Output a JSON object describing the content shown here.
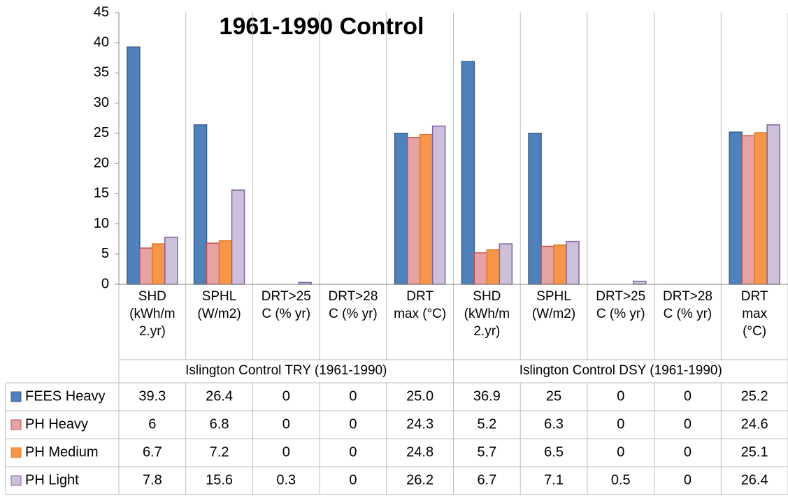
{
  "chart_data": {
    "type": "bar",
    "title": "1961-1990 Control",
    "categories": [
      "SHD\n(kWh/m\n2.yr)",
      "SPHL\n(W/m2)",
      "DRT>25\nC (% yr)",
      "DRT>28\nC (% yr)",
      "DRT\nmax (°C)",
      "SHD\n(kWh/m\n2.yr)",
      "SPHL\n(W/m2)",
      "DRT>25\nC (% yr)",
      "DRT>28\nC  (% yr)",
      "DRT\nmax\n(°C)"
    ],
    "groups": [
      "Islington Control TRY (1961-1990)",
      "Islington Control DSY (1961-1990)"
    ],
    "series": [
      {
        "name": "FEES Heavy",
        "color": "#4f81bd",
        "values": [
          39.3,
          26.4,
          0,
          0,
          25.0,
          36.9,
          25,
          0,
          0,
          25.2
        ],
        "value_labels": [
          "39.3",
          "26.4",
          "0",
          "0",
          "25.0",
          "36.9",
          "25",
          "0",
          "0",
          "25.2"
        ]
      },
      {
        "name": "PH Heavy",
        "color": "#e6a3a3",
        "values": [
          6,
          6.8,
          0,
          0,
          24.3,
          5.2,
          6.3,
          0,
          0,
          24.6
        ],
        "value_labels": [
          "6",
          "6.8",
          "0",
          "0",
          "24.3",
          "5.2",
          "6.3",
          "0",
          "0",
          "24.6"
        ]
      },
      {
        "name": "PH Medium",
        "color": "#f79646",
        "values": [
          6.7,
          7.2,
          0,
          0,
          24.8,
          5.7,
          6.5,
          0,
          0,
          25.1
        ],
        "value_labels": [
          "6.7",
          "7.2",
          "0",
          "0",
          "24.8",
          "5.7",
          "6.5",
          "0",
          "0",
          "25.1"
        ]
      },
      {
        "name": "PH Light",
        "color": "#ccc0da",
        "values": [
          7.8,
          15.6,
          0.3,
          0,
          26.2,
          6.7,
          7.1,
          0.5,
          0,
          26.4
        ],
        "value_labels": [
          "7.8",
          "15.6",
          "0.3",
          "0",
          "26.2",
          "6.7",
          "7.1",
          "0.5",
          "0",
          "26.4"
        ]
      }
    ],
    "ylim": [
      0,
      45
    ],
    "yticks": [
      0,
      5,
      10,
      15,
      20,
      25,
      30,
      35,
      40,
      45
    ]
  }
}
